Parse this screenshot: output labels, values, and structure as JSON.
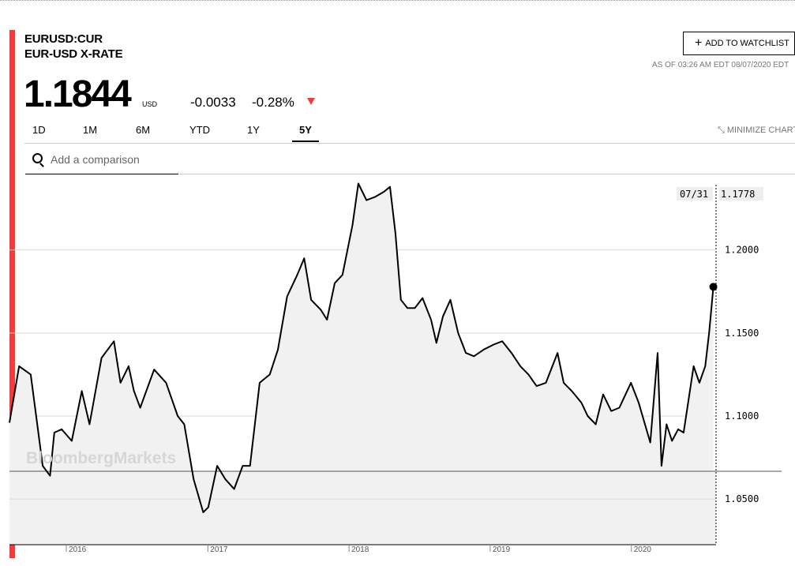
{
  "header": {
    "ticker": "EURUSD:CUR",
    "name": "EUR-USD X-RATE",
    "price": "1.1844",
    "currency": "USD",
    "change": "-0.0033",
    "change_pct": "-0.28%",
    "down_color": "#f23c3c"
  },
  "actions": {
    "watchlist_label": "ADD TO WATCHLIST",
    "as_of": "AS OF 03:26 AM EDT 08/07/2020 EDT",
    "minimize_label": "MINIMIZE CHART"
  },
  "tabs": [
    {
      "label": "1D",
      "active": false
    },
    {
      "label": "1M",
      "active": false
    },
    {
      "label": "6M",
      "active": false
    },
    {
      "label": "YTD",
      "active": false
    },
    {
      "label": "1Y",
      "active": false
    },
    {
      "label": "5Y",
      "active": true
    }
  ],
  "search": {
    "placeholder": "Add a comparison",
    "icon": "search-icon"
  },
  "chart_data": {
    "type": "line",
    "watermark": "BloombergMarkets",
    "ylim": [
      1.0225,
      1.245
    ],
    "yticks": [
      1.05,
      1.1,
      1.15,
      1.2
    ],
    "ytick_labels": [
      "1.0500",
      "1.1000",
      "1.1500",
      "1.2000"
    ],
    "xlim": [
      "2015-08-07",
      "2020-08-07"
    ],
    "xticks": [
      "2016-01-01",
      "2017-01-01",
      "2018-01-01",
      "2019-01-01",
      "2020-01-01"
    ],
    "xtick_labels": [
      "2016",
      "2017",
      "2018",
      "2019",
      "2020"
    ],
    "grid": true,
    "cursor": {
      "date_label": "07/31",
      "value_label": "1.1778",
      "value": 1.1778
    },
    "line_color": "#000000",
    "area_color": "#f1f1f1",
    "series": [
      {
        "x": [
          "2015-08-07",
          "2015-09-01",
          "2015-10-01",
          "2015-11-01",
          "2015-11-20",
          "2015-12-01",
          "2015-12-20",
          "2016-01-15",
          "2016-02-10",
          "2016-03-01",
          "2016-04-01",
          "2016-05-03",
          "2016-05-20",
          "2016-06-10",
          "2016-06-24",
          "2016-07-10",
          "2016-08-15",
          "2016-09-15",
          "2016-10-15",
          "2016-11-01",
          "2016-11-25",
          "2016-12-20",
          "2017-01-02",
          "2017-01-25",
          "2017-02-15",
          "2017-03-10",
          "2017-04-01",
          "2017-04-20",
          "2017-05-15",
          "2017-06-10",
          "2017-07-01",
          "2017-07-25",
          "2017-08-20",
          "2017-09-07",
          "2017-09-25",
          "2017-10-20",
          "2017-11-05",
          "2017-11-25",
          "2017-12-15",
          "2018-01-10",
          "2018-01-25",
          "2018-02-15",
          "2018-03-10",
          "2018-04-01",
          "2018-04-17",
          "2018-05-01",
          "2018-05-15",
          "2018-06-01",
          "2018-06-20",
          "2018-07-10",
          "2018-08-01",
          "2018-08-15",
          "2018-09-01",
          "2018-09-20",
          "2018-10-10",
          "2018-10-30",
          "2018-11-20",
          "2018-12-15",
          "2019-01-10",
          "2019-02-01",
          "2019-02-25",
          "2019-03-20",
          "2019-04-10",
          "2019-05-01",
          "2019-05-25",
          "2019-06-24",
          "2019-07-10",
          "2019-07-31",
          "2019-08-25",
          "2019-09-10",
          "2019-10-01",
          "2019-10-20",
          "2019-11-10",
          "2019-12-01",
          "2019-12-31",
          "2020-01-20",
          "2020-02-19",
          "2020-03-09",
          "2020-03-19",
          "2020-04-01",
          "2020-04-15",
          "2020-05-01",
          "2020-05-15",
          "2020-06-10",
          "2020-06-25",
          "2020-07-10",
          "2020-07-20",
          "2020-07-31"
        ],
        "values": [
          1.096,
          1.13,
          1.125,
          1.07,
          1.064,
          1.09,
          1.092,
          1.085,
          1.115,
          1.095,
          1.135,
          1.145,
          1.12,
          1.13,
          1.115,
          1.105,
          1.128,
          1.12,
          1.1,
          1.095,
          1.062,
          1.042,
          1.045,
          1.07,
          1.062,
          1.056,
          1.07,
          1.07,
          1.12,
          1.125,
          1.14,
          1.172,
          1.185,
          1.195,
          1.17,
          1.164,
          1.158,
          1.18,
          1.185,
          1.215,
          1.24,
          1.23,
          1.232,
          1.235,
          1.238,
          1.21,
          1.17,
          1.165,
          1.165,
          1.171,
          1.158,
          1.144,
          1.16,
          1.17,
          1.15,
          1.138,
          1.136,
          1.14,
          1.143,
          1.145,
          1.138,
          1.13,
          1.125,
          1.118,
          1.12,
          1.138,
          1.12,
          1.115,
          1.108,
          1.1,
          1.095,
          1.113,
          1.103,
          1.105,
          1.12,
          1.108,
          1.084,
          1.138,
          1.07,
          1.095,
          1.085,
          1.092,
          1.09,
          1.13,
          1.12,
          1.13,
          1.15,
          1.1778
        ]
      }
    ]
  }
}
